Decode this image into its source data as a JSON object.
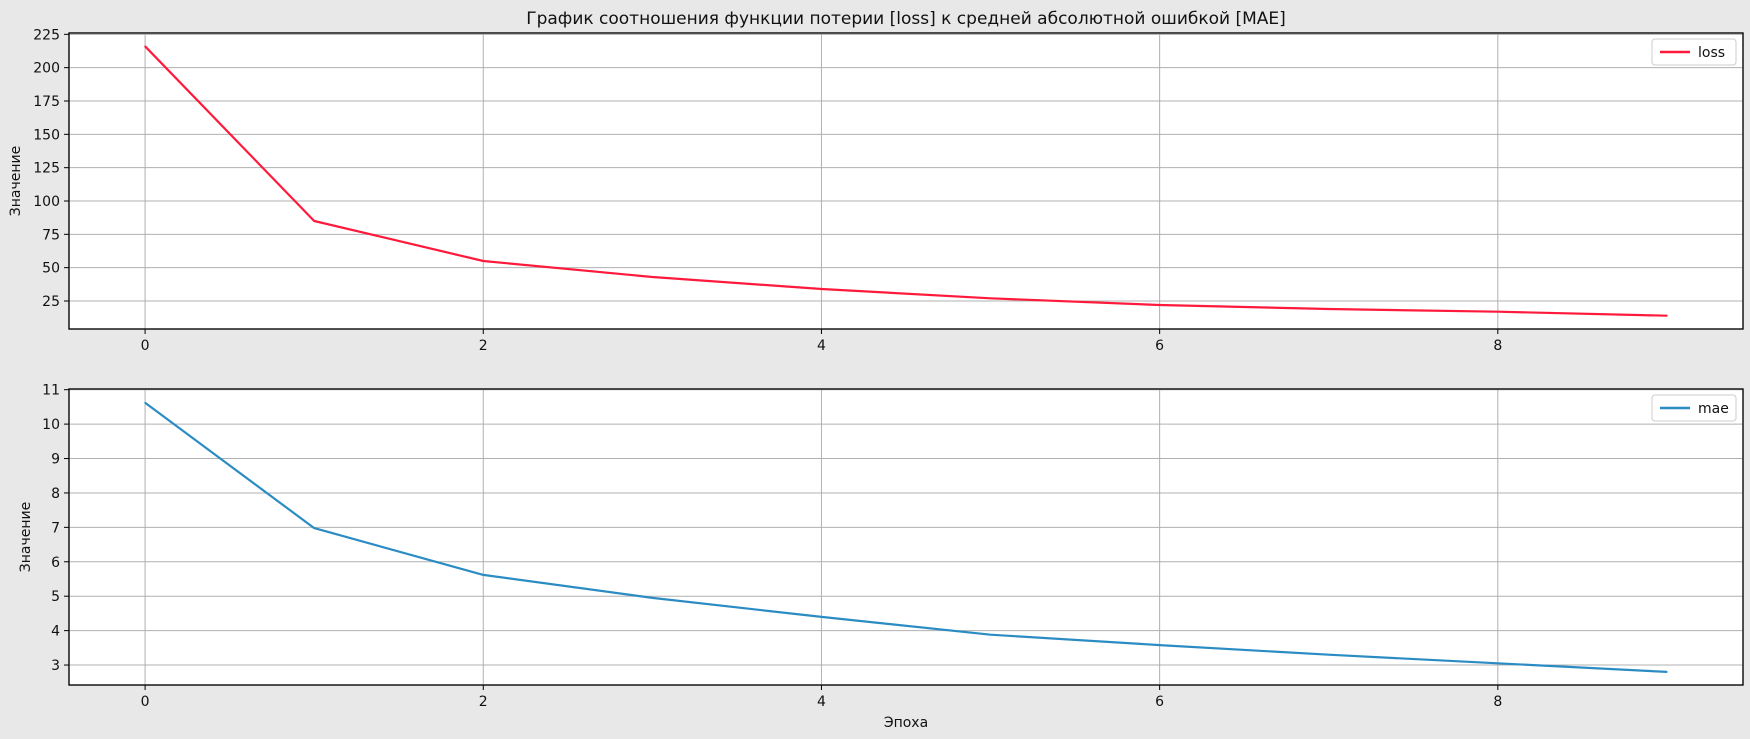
{
  "title": "График соотношения функции потерии [loss] к средней абсолютной ошибкой [MAE]",
  "chart_data": [
    {
      "type": "line",
      "ylabel": "Значение",
      "xlabel": "",
      "x": [
        0,
        1,
        2,
        3,
        4,
        5,
        6,
        7,
        8,
        9
      ],
      "xlim": [
        -0.45,
        9.45
      ],
      "ylim": [
        4,
        226
      ],
      "xticks": [
        0,
        2,
        4,
        6,
        8
      ],
      "yticks": [
        25,
        50,
        75,
        100,
        125,
        150,
        175,
        200,
        225
      ],
      "grid": true,
      "legend_position": "top-right",
      "series": [
        {
          "name": "loss",
          "color": "#ff1a3c",
          "values": [
            216,
            85,
            55,
            43,
            34,
            27,
            22,
            19,
            17,
            14
          ]
        }
      ]
    },
    {
      "type": "line",
      "ylabel": "Значение",
      "xlabel": "Эпоха",
      "x": [
        0,
        1,
        2,
        3,
        4,
        5,
        6,
        7,
        8,
        9
      ],
      "xlim": [
        -0.45,
        9.45
      ],
      "ylim": [
        2.42,
        11.02
      ],
      "xticks": [
        0,
        2,
        4,
        6,
        8
      ],
      "yticks": [
        3,
        4,
        5,
        6,
        7,
        8,
        9,
        10,
        11
      ],
      "grid": true,
      "legend_position": "top-right",
      "series": [
        {
          "name": "mae",
          "color": "#2b8cc4",
          "values": [
            10.62,
            6.98,
            5.62,
            4.95,
            4.4,
            3.88,
            3.58,
            3.3,
            3.05,
            2.8
          ]
        }
      ]
    }
  ]
}
